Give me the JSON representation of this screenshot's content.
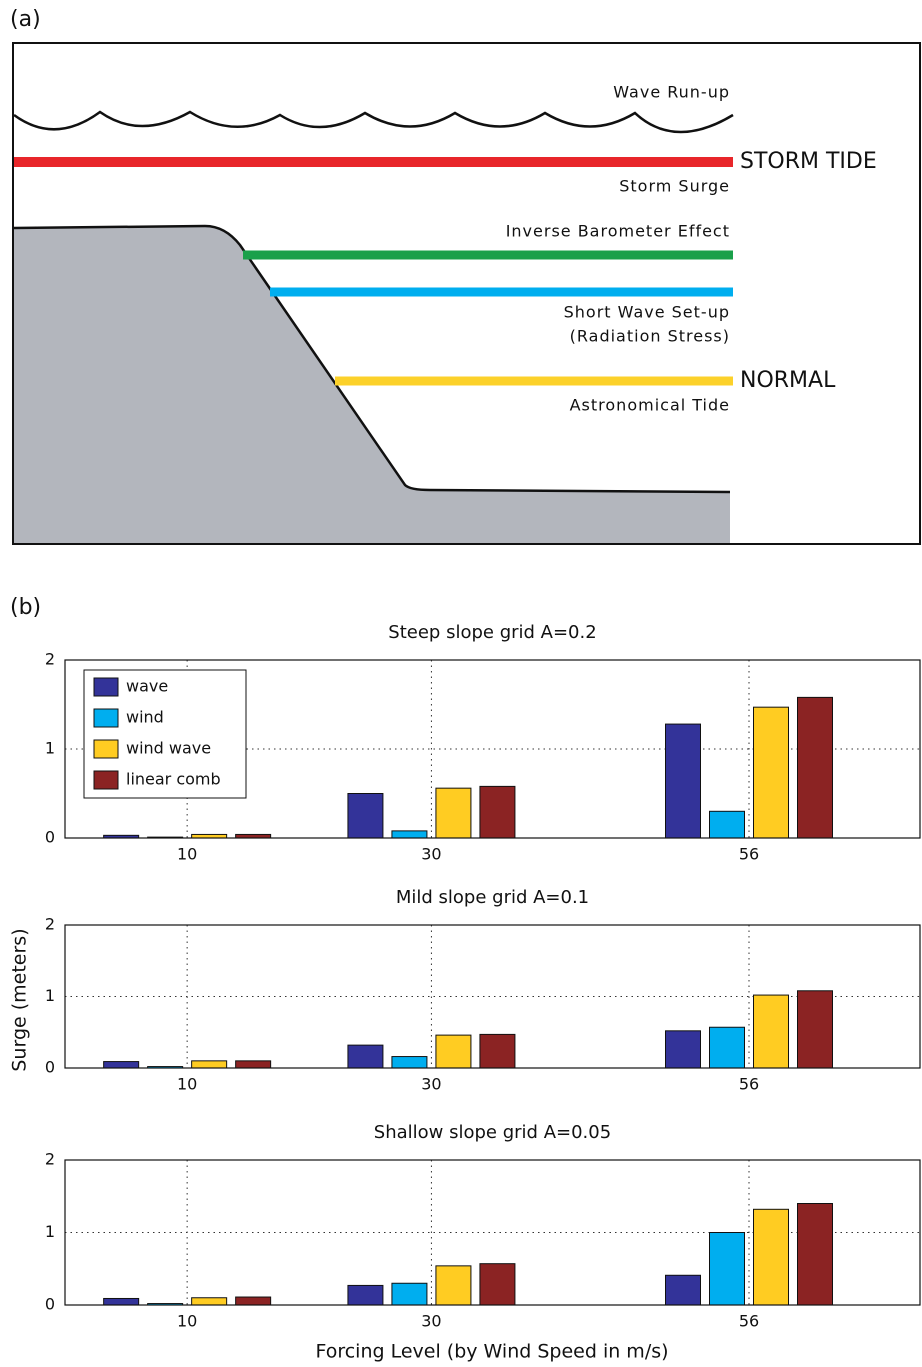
{
  "panel_a": {
    "label": "(a)",
    "right_labels": {
      "storm_tide": "STORM TIDE",
      "normal": "NORMAL"
    },
    "levels": {
      "wave_runup": "Wave Run-up",
      "storm_surge": "Storm Surge",
      "inverse_barometer": "Inverse Barometer Effect",
      "short_wave_setup": "Short Wave Set-up",
      "radiation_stress": "(Radiation Stress)",
      "astronomical_tide": "Astronomical Tide"
    }
  },
  "panel_b": {
    "label": "(b)",
    "ylabel": "Surge (meters)",
    "xlabel": "Forcing Level (by Wind Speed in m/s)"
  },
  "chart_data": [
    {
      "type": "bar",
      "title": "Steep slope grid A=0.2",
      "x": [
        10,
        30,
        56
      ],
      "xlim": [
        0,
        70
      ],
      "xticks": [
        10,
        30,
        56
      ],
      "ylim": [
        0,
        2
      ],
      "yticks": [
        0,
        1,
        2
      ],
      "grid": true,
      "legend": "upper left",
      "series": [
        {
          "name": "wave",
          "color": "#333399",
          "values": [
            0.03,
            0.5,
            1.28
          ]
        },
        {
          "name": "wind",
          "color": "#00aeef",
          "values": [
            0.01,
            0.08,
            0.3
          ]
        },
        {
          "name": "wind wave",
          "color": "#ffcc22",
          "values": [
            0.04,
            0.56,
            1.47
          ]
        },
        {
          "name": "linear comb",
          "color": "#8b2323",
          "values": [
            0.04,
            0.58,
            1.58
          ]
        }
      ]
    },
    {
      "type": "bar",
      "title": "Mild slope grid A=0.1",
      "x": [
        10,
        30,
        56
      ],
      "xlim": [
        0,
        70
      ],
      "xticks": [
        10,
        30,
        56
      ],
      "ylim": [
        0,
        2
      ],
      "yticks": [
        0,
        1,
        2
      ],
      "grid": true,
      "series": [
        {
          "color": "#333399",
          "values": [
            0.09,
            0.32,
            0.52
          ]
        },
        {
          "color": "#00aeef",
          "values": [
            0.02,
            0.16,
            0.57
          ]
        },
        {
          "color": "#ffcc22",
          "values": [
            0.1,
            0.46,
            1.02
          ]
        },
        {
          "color": "#8b2323",
          "values": [
            0.1,
            0.47,
            1.08
          ]
        }
      ]
    },
    {
      "type": "bar",
      "title": "Shallow slope grid A=0.05",
      "x": [
        10,
        30,
        56
      ],
      "xlim": [
        0,
        70
      ],
      "xticks": [
        10,
        30,
        56
      ],
      "ylim": [
        0,
        2
      ],
      "yticks": [
        0,
        1,
        2
      ],
      "grid": true,
      "series": [
        {
          "color": "#333399",
          "values": [
            0.09,
            0.27,
            0.41
          ]
        },
        {
          "color": "#00aeef",
          "values": [
            0.02,
            0.3,
            1.0
          ]
        },
        {
          "color": "#ffcc22",
          "values": [
            0.1,
            0.54,
            1.32
          ]
        },
        {
          "color": "#8b2323",
          "values": [
            0.11,
            0.57,
            1.4
          ]
        }
      ]
    }
  ]
}
